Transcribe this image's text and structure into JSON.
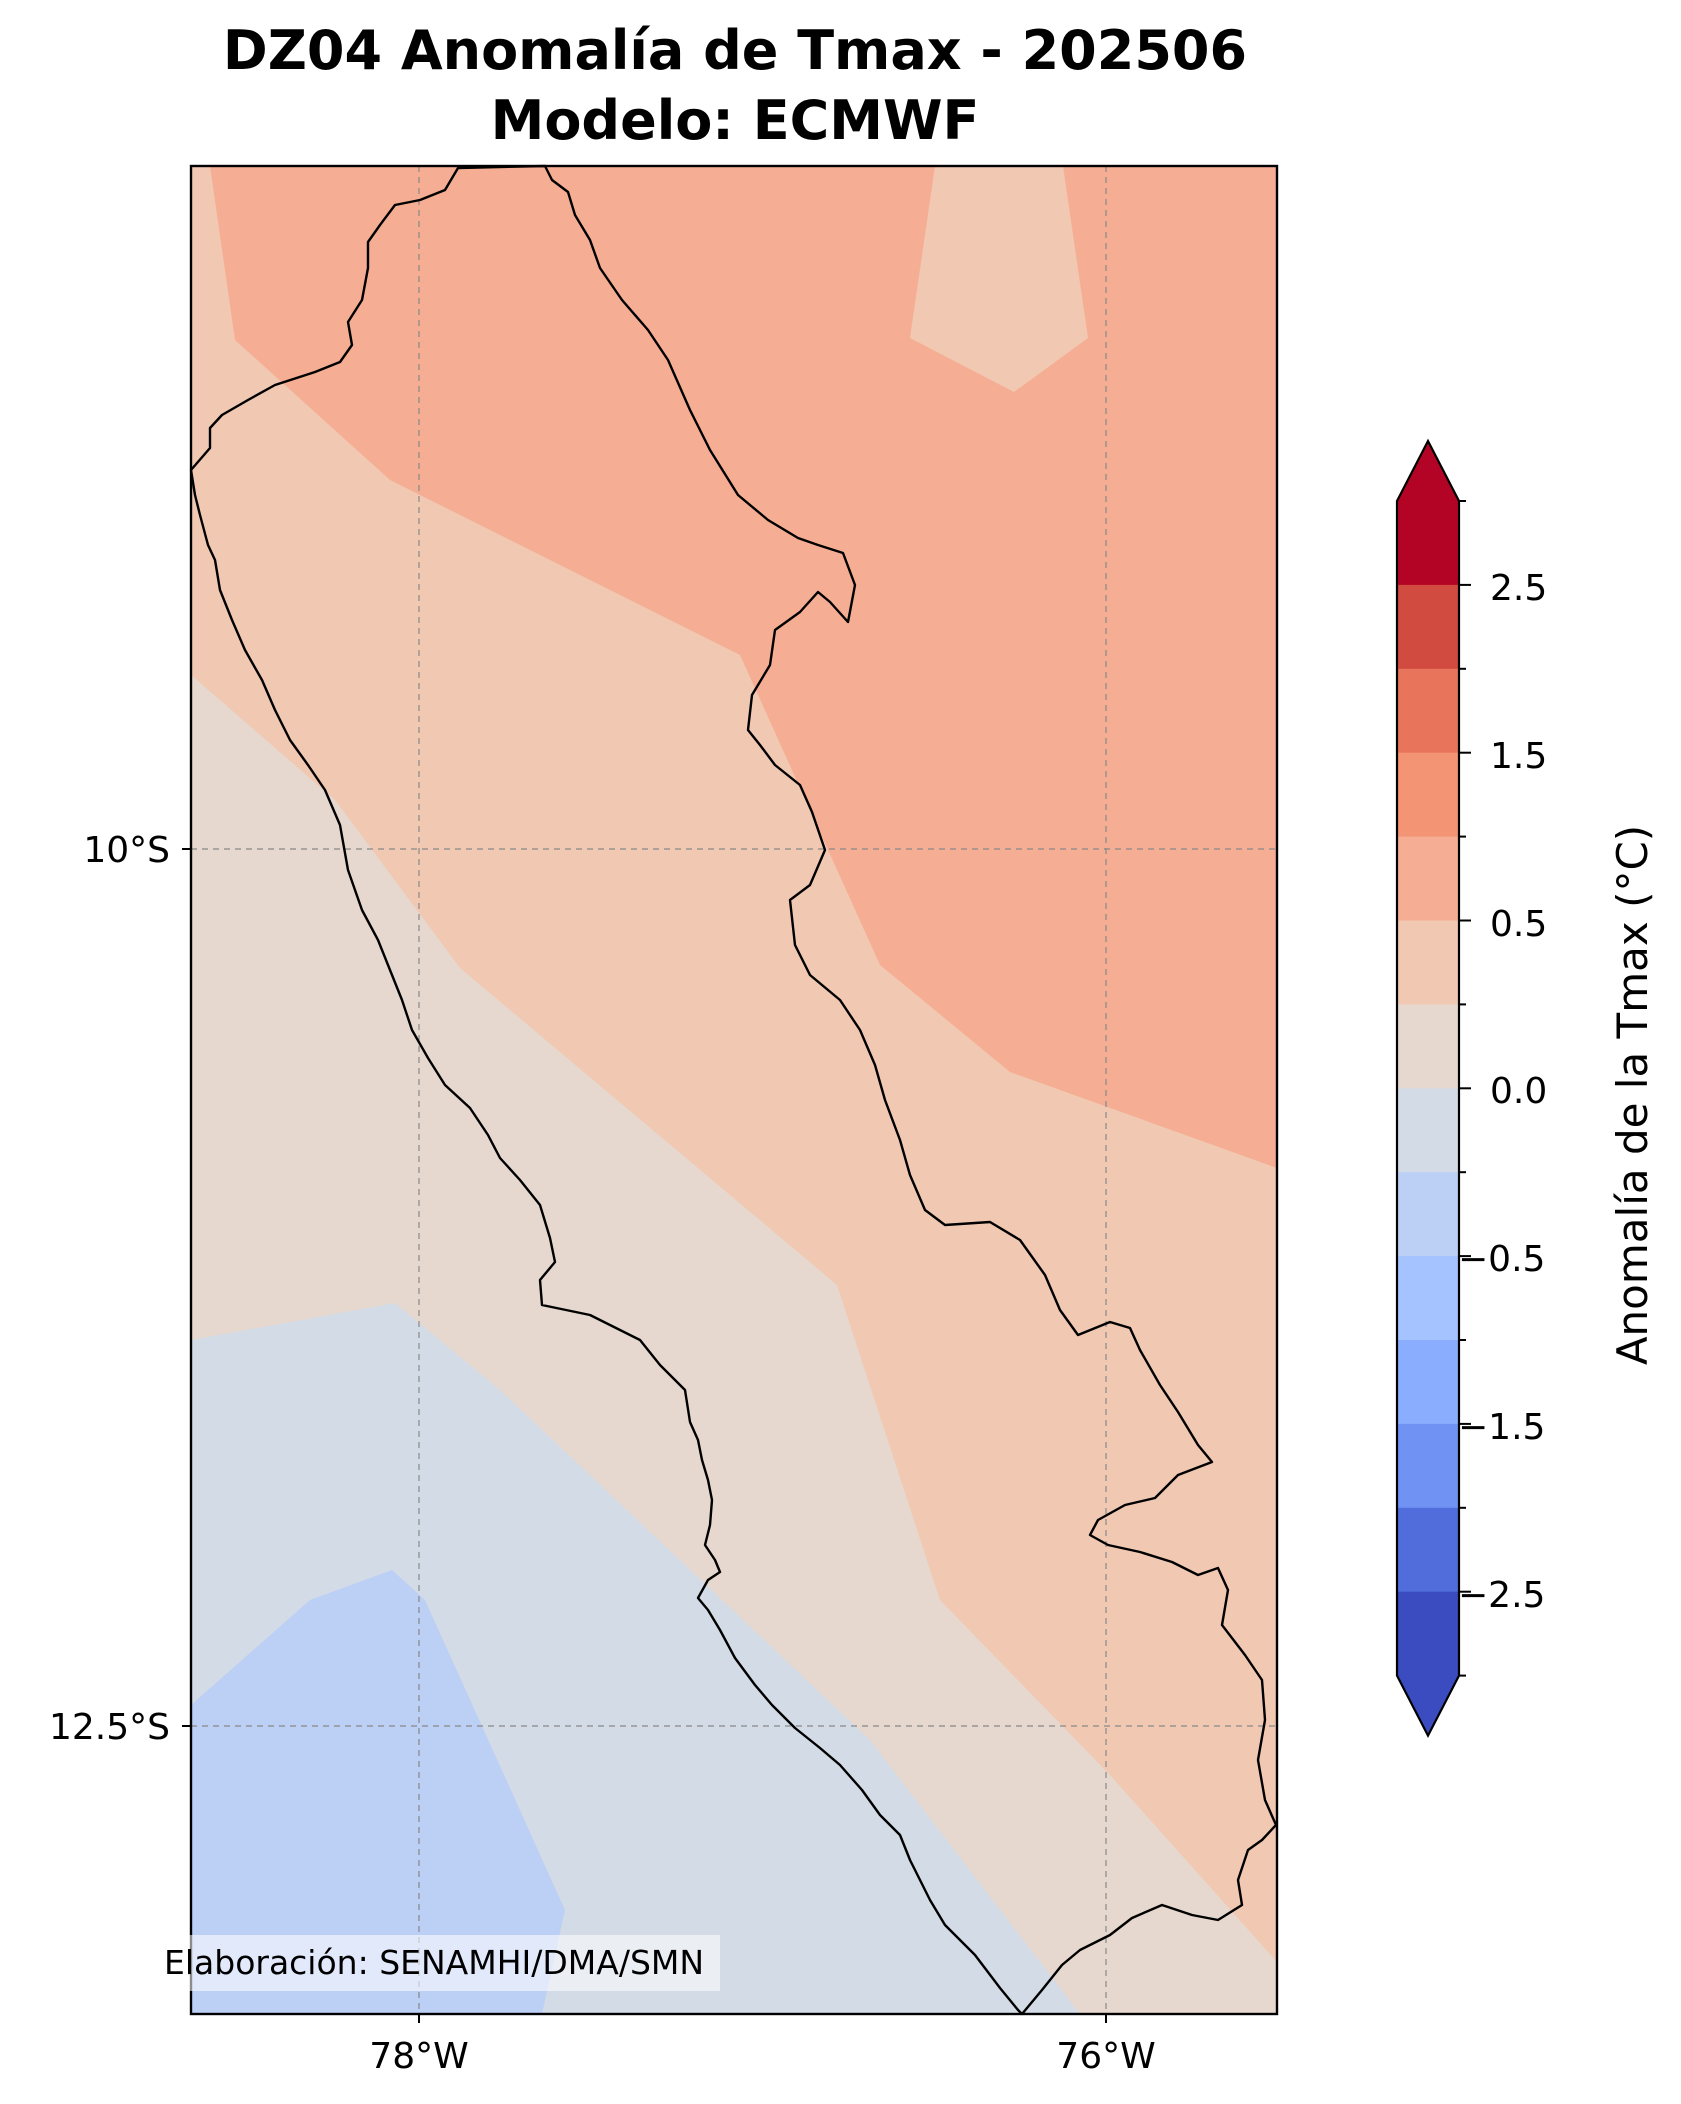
{
  "title": {
    "line1": "DZ04 Anomalía de Tmax - 202506",
    "line2": "Modelo: ECMWF"
  },
  "map": {
    "lat_labels": [
      "10°S",
      "12.5°S"
    ],
    "lon_labels": [
      "78°W",
      "76°W"
    ],
    "credit": "Elaboración: SENAMHI/DMA/SMN",
    "fill_colors": {
      "0.5_to_1.0": "#f5ae93",
      "0.25_to_0.5": "#f1c8b2",
      "0.0_to_0.25": "#e6d8ce",
      "-0.25_to_0.0": "#d3dbe6",
      "-0.5_to_-0.25": "#bccff5"
    }
  },
  "colorbar": {
    "label": "Anomalía de la Tmax (°C)",
    "tick_labels": [
      "2.5",
      "1.5",
      "0.5",
      "0.0",
      "−0.5",
      "−1.5",
      "−2.5"
    ],
    "extend": "both",
    "colors_top_to_bottom": [
      "#b40426",
      "#d24b40",
      "#e7745b",
      "#f39475",
      "#f5ae93",
      "#f1c8b2",
      "#e6d8ce",
      "#d3dbe6",
      "#bccff5",
      "#a5c3fe",
      "#8badfd",
      "#6f92f3",
      "#516ddb",
      "#3b4cc0"
    ],
    "arrow_top_color": "#b40426",
    "arrow_bottom_color": "#3b4cc0"
  }
}
